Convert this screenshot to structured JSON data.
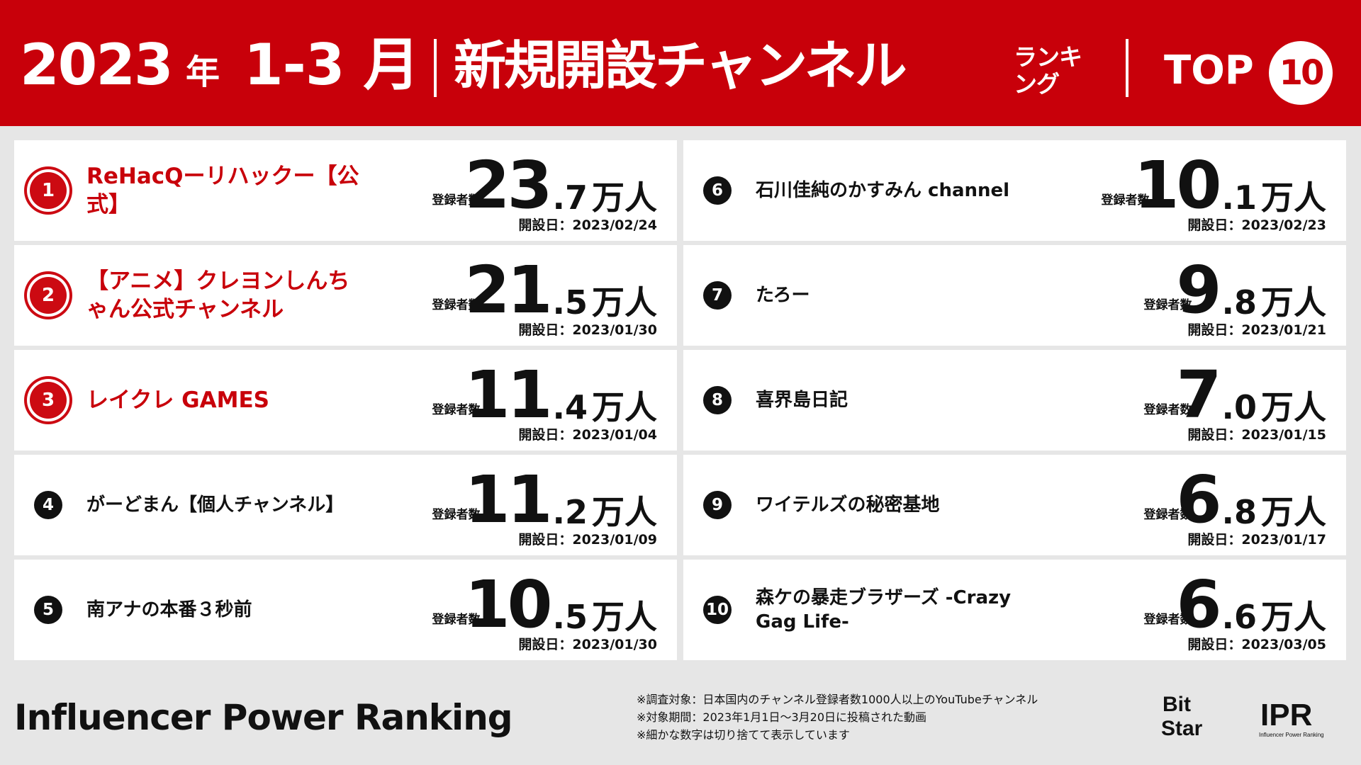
{
  "header": {
    "year": "2023",
    "year_suffix": "年",
    "months": "1-3 月",
    "title": "新規開設チャンネル",
    "title_small": "ランキング",
    "top": "TOP",
    "top_num": "10"
  },
  "labels": {
    "subs_label": "登録者数",
    "unit": "万人",
    "date_prefix": "開設日："
  },
  "rankings": [
    {
      "rank": "1",
      "name": "ReHacQーリハックー【公式】",
      "num": "23",
      "dec": ".7",
      "date": "2023/02/24"
    },
    {
      "rank": "2",
      "name": "【アニメ】クレヨンしんちゃん公式チャンネル",
      "num": "21",
      "dec": ".5",
      "date": "2023/01/30"
    },
    {
      "rank": "3",
      "name": "レイクレ GAMES",
      "num": "11",
      "dec": ".4",
      "date": "2023/01/04"
    },
    {
      "rank": "4",
      "name": "がーどまん【個人チャンネル】",
      "num": "11",
      "dec": ".2",
      "date": "2023/01/09"
    },
    {
      "rank": "5",
      "name": "南アナの本番３秒前",
      "num": "10",
      "dec": ".5",
      "date": "2023/01/30"
    },
    {
      "rank": "6",
      "name": "石川佳純のかすみん channel",
      "num": "10",
      "dec": ".1",
      "date": "2023/02/23"
    },
    {
      "rank": "7",
      "name": "たろー",
      "num": "9",
      "dec": ".8",
      "date": "2023/01/21"
    },
    {
      "rank": "8",
      "name": "喜界島日記",
      "num": "7",
      "dec": ".0",
      "date": "2023/01/15"
    },
    {
      "rank": "9",
      "name": "ワイテルズの秘密基地",
      "num": "6",
      "dec": ".8",
      "date": "2023/01/17"
    },
    {
      "rank": "10",
      "name": "森ケの暴走ブラザーズ -Crazy Gag Life-",
      "num": "6",
      "dec": ".6",
      "date": "2023/03/05"
    }
  ],
  "footer": {
    "brand": "Influencer Power Ranking",
    "notes": [
      "※調査対象：日本国内のチャンネル登録者数1000人以上のYouTubeチャンネル",
      "※対象期間：2023年1月1日～3月20日に投稿された動画",
      "※細かな数字は切り捨てて表示しています"
    ],
    "logo_bitstar": "Bit Star",
    "logo_ipr": "IPR",
    "logo_ipr_sub": "Influencer Power Ranking"
  }
}
